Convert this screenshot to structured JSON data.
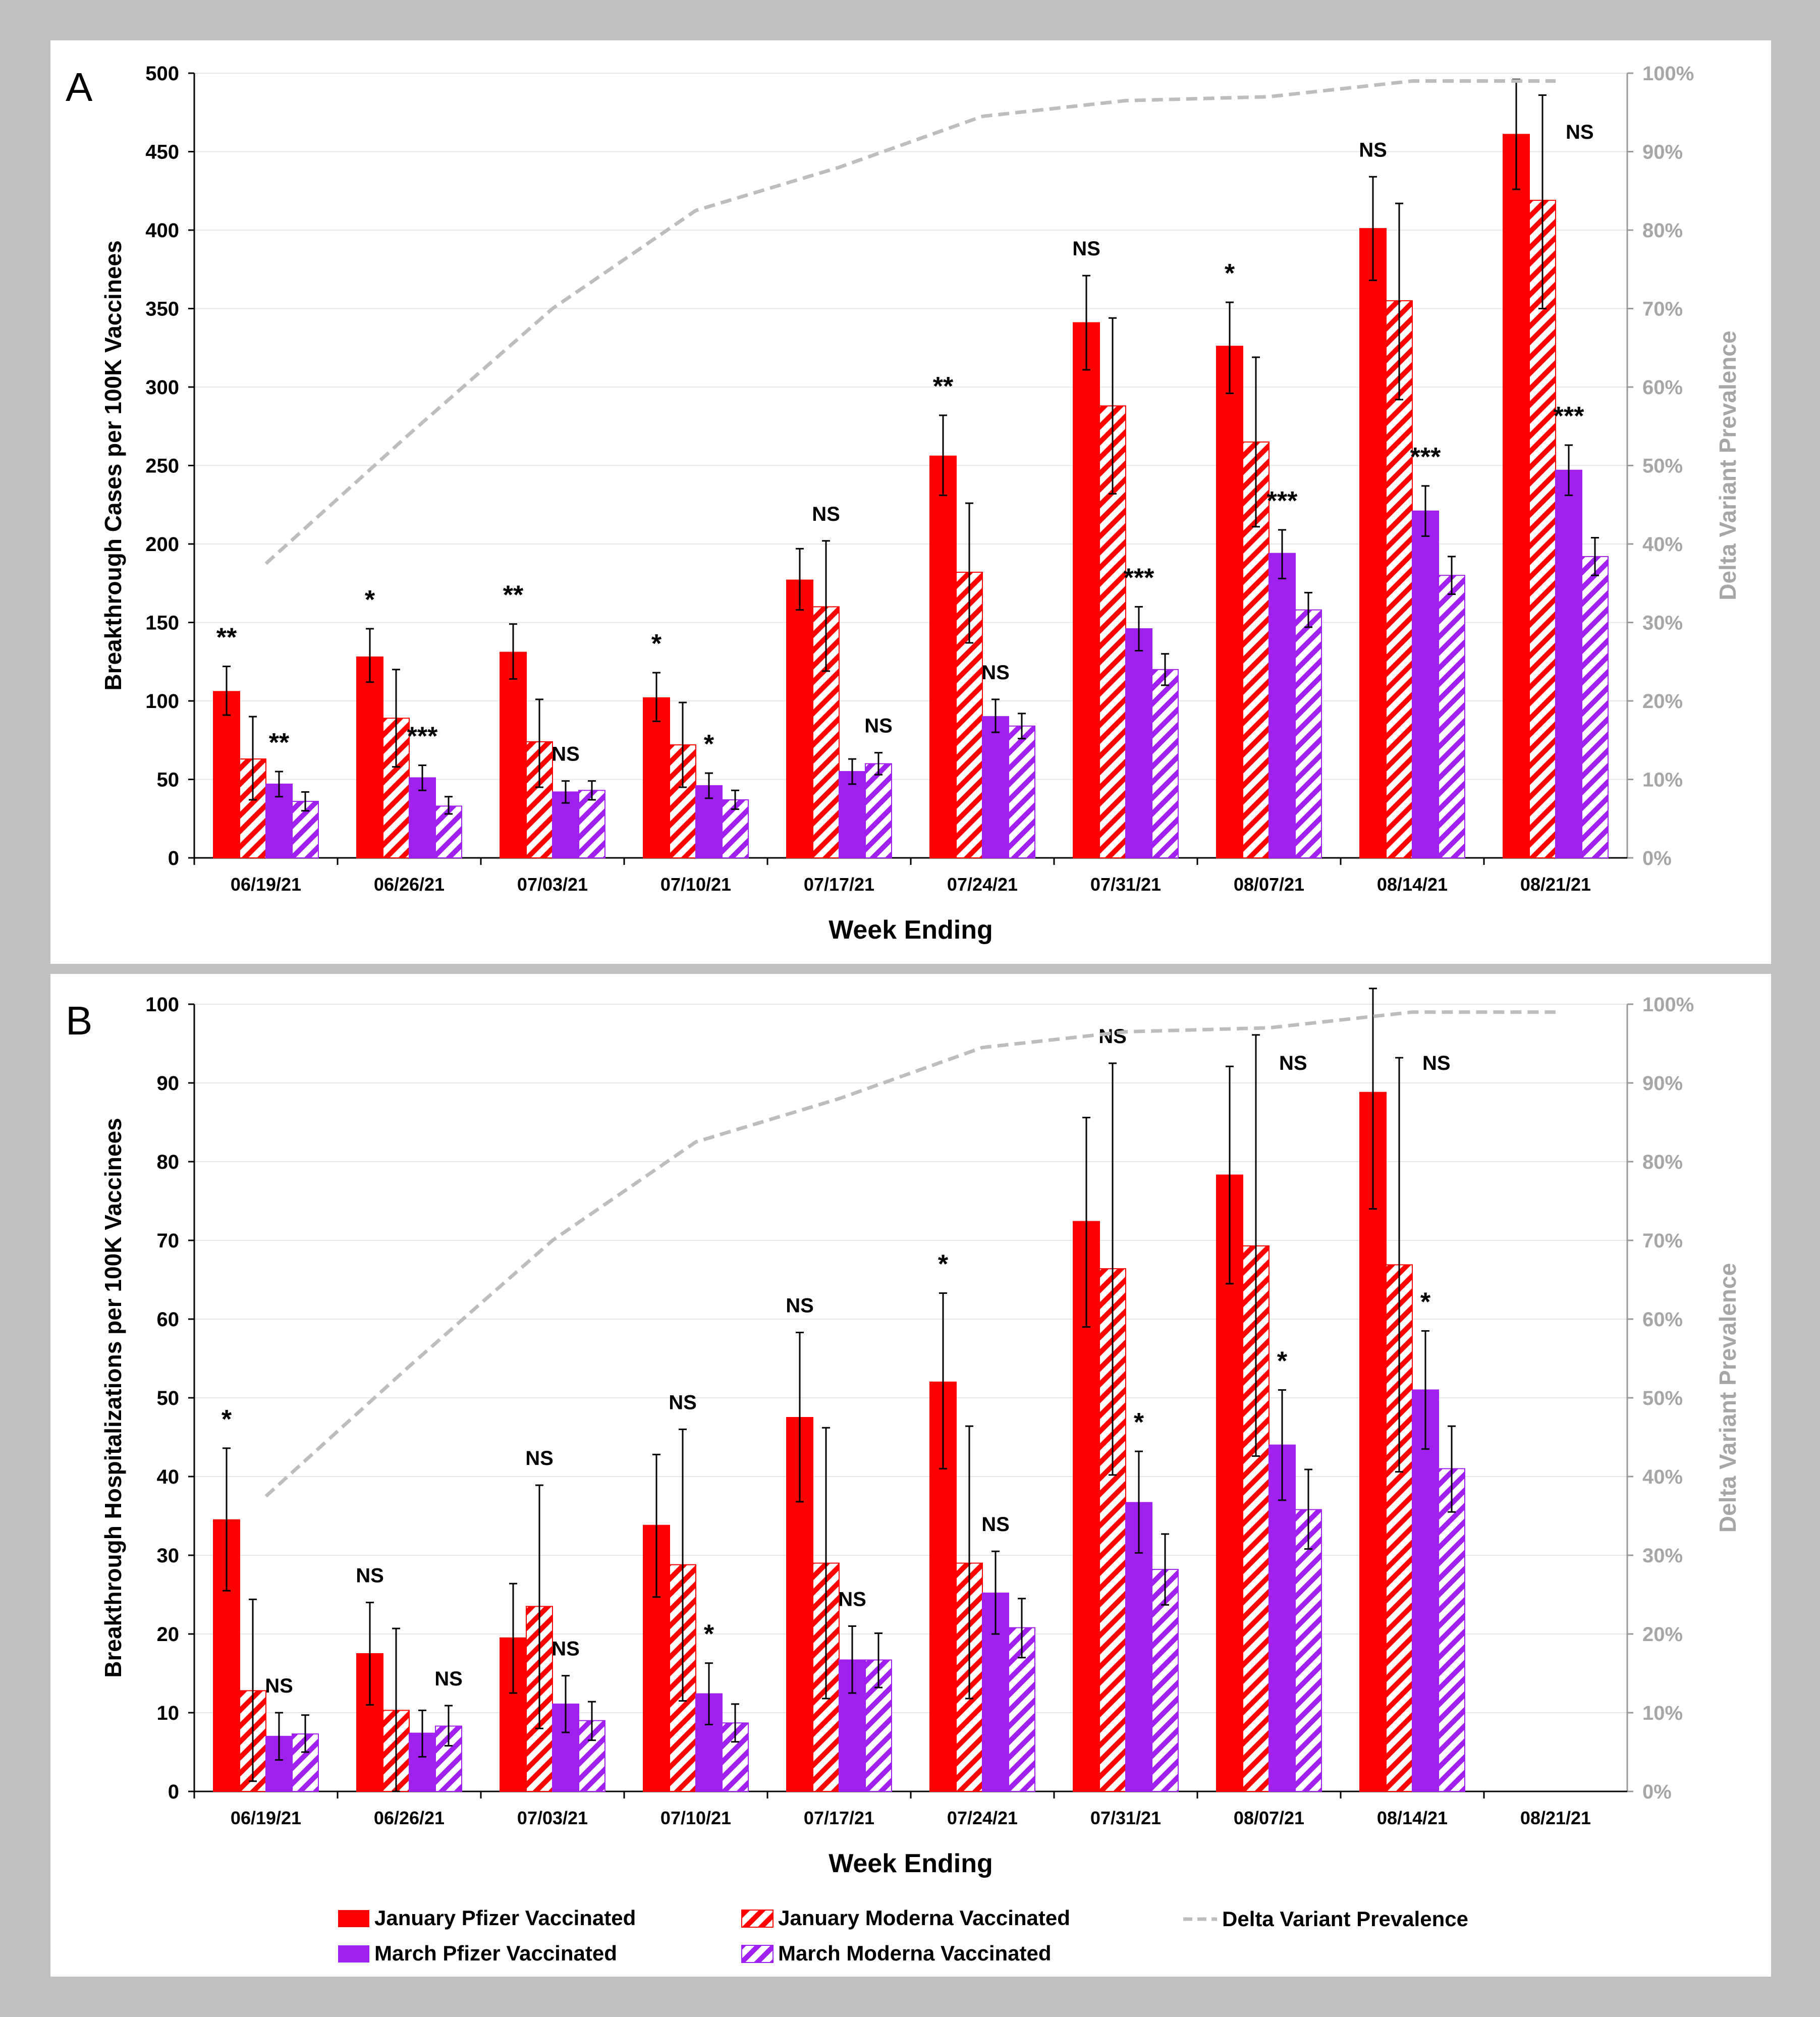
{
  "panels": [
    {
      "label": "A"
    },
    {
      "label": "B"
    }
  ],
  "legend": [
    {
      "key": "jan_pfizer",
      "label": "January Pfizer Vaccinated",
      "style": "solid-red"
    },
    {
      "key": "jan_moderna",
      "label": "January Moderna Vaccinated",
      "style": "hatch-red"
    },
    {
      "key": "delta",
      "label": "Delta Variant Prevalence",
      "style": "dashed-gray"
    },
    {
      "key": "mar_pfizer",
      "label": "March Pfizer Vaccinated",
      "style": "solid-purple"
    },
    {
      "key": "mar_moderna",
      "label": "March Moderna Vaccinated",
      "style": "hatch-purple"
    }
  ],
  "colors": {
    "red": "#ff0000",
    "purple": "#a020f0",
    "gray": "#bdbdbd",
    "frame": "#c0c0c0"
  },
  "chart_data": [
    {
      "type": "bar",
      "panel": "A",
      "xlabel": "Week Ending",
      "ylabel": "Breakthrough Cases per 100K Vaccinees",
      "y2label": "Delta Variant Prevalence",
      "ylim": [
        0,
        500
      ],
      "yticks": [
        0,
        50,
        100,
        150,
        200,
        250,
        300,
        350,
        400,
        450,
        500
      ],
      "y2lim": [
        0,
        100
      ],
      "y2ticks": [
        "0%",
        "10%",
        "20%",
        "30%",
        "40%",
        "50%",
        "60%",
        "70%",
        "80%",
        "90%",
        "100%"
      ],
      "categories": [
        "06/19/21",
        "06/26/21",
        "07/03/21",
        "07/10/21",
        "07/17/21",
        "07/24/21",
        "07/31/21",
        "08/07/21",
        "08/14/21",
        "08/21/21"
      ],
      "series": [
        {
          "name": "January Pfizer Vaccinated",
          "values": [
            106,
            128,
            131,
            102,
            177,
            256,
            341,
            326,
            401,
            461
          ],
          "err_lo": [
            91,
            112,
            114,
            87,
            158,
            231,
            311,
            296,
            368,
            426
          ],
          "err_hi": [
            122,
            146,
            149,
            118,
            197,
            282,
            371,
            354,
            434,
            496
          ]
        },
        {
          "name": "January Moderna Vaccinated",
          "values": [
            63,
            89,
            74,
            72,
            160,
            182,
            288,
            265,
            355,
            419
          ],
          "err_lo": [
            37,
            58,
            45,
            45,
            119,
            137,
            232,
            211,
            292,
            350
          ],
          "err_hi": [
            90,
            120,
            101,
            99,
            202,
            226,
            344,
            319,
            417,
            486
          ]
        },
        {
          "name": "March Pfizer Vaccinated",
          "values": [
            47,
            51,
            42,
            46,
            55,
            90,
            146,
            194,
            221,
            247
          ],
          "err_lo": [
            39,
            43,
            35,
            38,
            47,
            80,
            132,
            178,
            205,
            231
          ],
          "err_hi": [
            55,
            59,
            49,
            54,
            63,
            101,
            160,
            209,
            237,
            263
          ]
        },
        {
          "name": "March Moderna Vaccinated",
          "values": [
            36,
            33,
            43,
            37,
            60,
            84,
            120,
            158,
            180,
            192
          ],
          "err_lo": [
            30,
            28,
            37,
            31,
            53,
            76,
            110,
            147,
            168,
            180
          ],
          "err_hi": [
            42,
            39,
            49,
            43,
            67,
            92,
            130,
            169,
            192,
            204
          ]
        }
      ],
      "significance": [
        {
          "category": 0,
          "pair": "jan",
          "text": "**"
        },
        {
          "category": 0,
          "pair": "mar",
          "text": "**"
        },
        {
          "category": 1,
          "pair": "jan",
          "text": "*"
        },
        {
          "category": 1,
          "pair": "mar",
          "text": "***"
        },
        {
          "category": 2,
          "pair": "jan",
          "text": "**"
        },
        {
          "category": 2,
          "pair": "mar",
          "text": "NS"
        },
        {
          "category": 3,
          "pair": "jan",
          "text": "*"
        },
        {
          "category": 3,
          "pair": "mar",
          "text": "*"
        },
        {
          "category": 4,
          "pair": "jan",
          "text": "NS"
        },
        {
          "category": 4,
          "pair": "mar",
          "text": "NS"
        },
        {
          "category": 5,
          "pair": "jan",
          "text": "**"
        },
        {
          "category": 5,
          "pair": "mar",
          "text": "NS"
        },
        {
          "category": 6,
          "pair": "jan",
          "text": "NS"
        },
        {
          "category": 6,
          "pair": "mar",
          "text": "***"
        },
        {
          "category": 7,
          "pair": "jan",
          "text": "*"
        },
        {
          "category": 7,
          "pair": "mar",
          "text": "***"
        },
        {
          "category": 8,
          "pair": "jan",
          "text": "NS"
        },
        {
          "category": 8,
          "pair": "mar",
          "text": "***"
        },
        {
          "category": 9,
          "pair": "jan",
          "text": "NS"
        },
        {
          "category": 9,
          "pair": "mar",
          "text": "***"
        }
      ],
      "delta_prevalence_pct": [
        37.5,
        54,
        70,
        82.5,
        88,
        94.5,
        96.5,
        97,
        99,
        99
      ]
    },
    {
      "type": "bar",
      "panel": "B",
      "xlabel": "Week Ending",
      "ylabel": "Breakthrough Hospitalizations per 100K Vaccinees",
      "y2label": "Delta Variant Prevalence",
      "ylim": [
        0,
        100
      ],
      "yticks": [
        0,
        10,
        20,
        30,
        40,
        50,
        60,
        70,
        80,
        90,
        100
      ],
      "y2lim": [
        0,
        100
      ],
      "y2ticks": [
        "0%",
        "10%",
        "20%",
        "30%",
        "40%",
        "50%",
        "60%",
        "70%",
        "80%",
        "90%",
        "100%"
      ],
      "categories": [
        "06/19/21",
        "06/26/21",
        "07/03/21",
        "07/10/21",
        "07/17/21",
        "07/24/21",
        "07/31/21",
        "08/07/21",
        "08/14/21",
        "08/21/21"
      ],
      "series": [
        {
          "name": "January Pfizer Vaccinated",
          "values": [
            34.5,
            17.5,
            19.5,
            33.8,
            47.5,
            52,
            72.4,
            78.3,
            88.8,
            null
          ],
          "err_lo": [
            25.5,
            11,
            12.5,
            24.7,
            36.8,
            41,
            59,
            64.5,
            74,
            null
          ],
          "err_hi": [
            43.6,
            24,
            26.4,
            42.8,
            58.3,
            63.3,
            85.6,
            92.1,
            103.6,
            null
          ]
        },
        {
          "name": "January Moderna Vaccinated",
          "values": [
            12.8,
            10.3,
            23.5,
            28.8,
            29,
            29,
            66.4,
            69.3,
            66.9,
            null
          ],
          "err_lo": [
            1.3,
            0,
            8,
            11.5,
            11.8,
            11.8,
            40.2,
            42.6,
            40.6,
            null
          ],
          "err_hi": [
            24.4,
            20.7,
            38.9,
            46,
            46.2,
            46.4,
            92.5,
            96.1,
            93.2,
            null
          ]
        },
        {
          "name": "March Pfizer Vaccinated",
          "values": [
            7,
            7.4,
            11.1,
            12.4,
            16.7,
            25.2,
            36.7,
            44,
            51,
            null
          ],
          "err_lo": [
            4,
            4.4,
            7.5,
            8.5,
            12.5,
            20,
            30.3,
            37,
            43.5,
            null
          ],
          "err_hi": [
            10,
            10.3,
            14.7,
            16.3,
            21,
            30.5,
            43.2,
            51,
            58.5,
            null
          ]
        },
        {
          "name": "March Moderna Vaccinated",
          "values": [
            7.3,
            8.3,
            9,
            8.7,
            16.7,
            20.8,
            28.2,
            35.8,
            41,
            null
          ],
          "err_lo": [
            5,
            5.8,
            6.5,
            6.3,
            13.2,
            17,
            23.7,
            30.8,
            35.5,
            null
          ],
          "err_hi": [
            9.7,
            10.9,
            11.4,
            11.1,
            20.1,
            24.5,
            32.7,
            40.9,
            46.4,
            null
          ]
        }
      ],
      "significance": [
        {
          "category": 0,
          "pair": "jan",
          "text": "*"
        },
        {
          "category": 0,
          "pair": "mar",
          "text": "NS"
        },
        {
          "category": 1,
          "pair": "jan",
          "text": "NS"
        },
        {
          "category": 1,
          "pair": "mar",
          "text": "NS"
        },
        {
          "category": 2,
          "pair": "jan",
          "text": "NS"
        },
        {
          "category": 2,
          "pair": "mar",
          "text": "NS"
        },
        {
          "category": 3,
          "pair": "jan",
          "text": "NS"
        },
        {
          "category": 3,
          "pair": "mar",
          "text": "*"
        },
        {
          "category": 4,
          "pair": "jan",
          "text": "NS"
        },
        {
          "category": 4,
          "pair": "mar",
          "text": "NS"
        },
        {
          "category": 5,
          "pair": "jan",
          "text": "*"
        },
        {
          "category": 5,
          "pair": "mar",
          "text": "NS"
        },
        {
          "category": 6,
          "pair": "jan",
          "text": "NS"
        },
        {
          "category": 6,
          "pair": "mar",
          "text": "*"
        },
        {
          "category": 7,
          "pair": "jan",
          "text": "NS"
        },
        {
          "category": 7,
          "pair": "mar",
          "text": "*"
        },
        {
          "category": 8,
          "pair": "jan",
          "text": "NS"
        },
        {
          "category": 8,
          "pair": "mar",
          "text": "*"
        }
      ],
      "delta_prevalence_pct": [
        37.5,
        54,
        70,
        82.5,
        88,
        94.5,
        96.5,
        97,
        99,
        99
      ]
    }
  ]
}
